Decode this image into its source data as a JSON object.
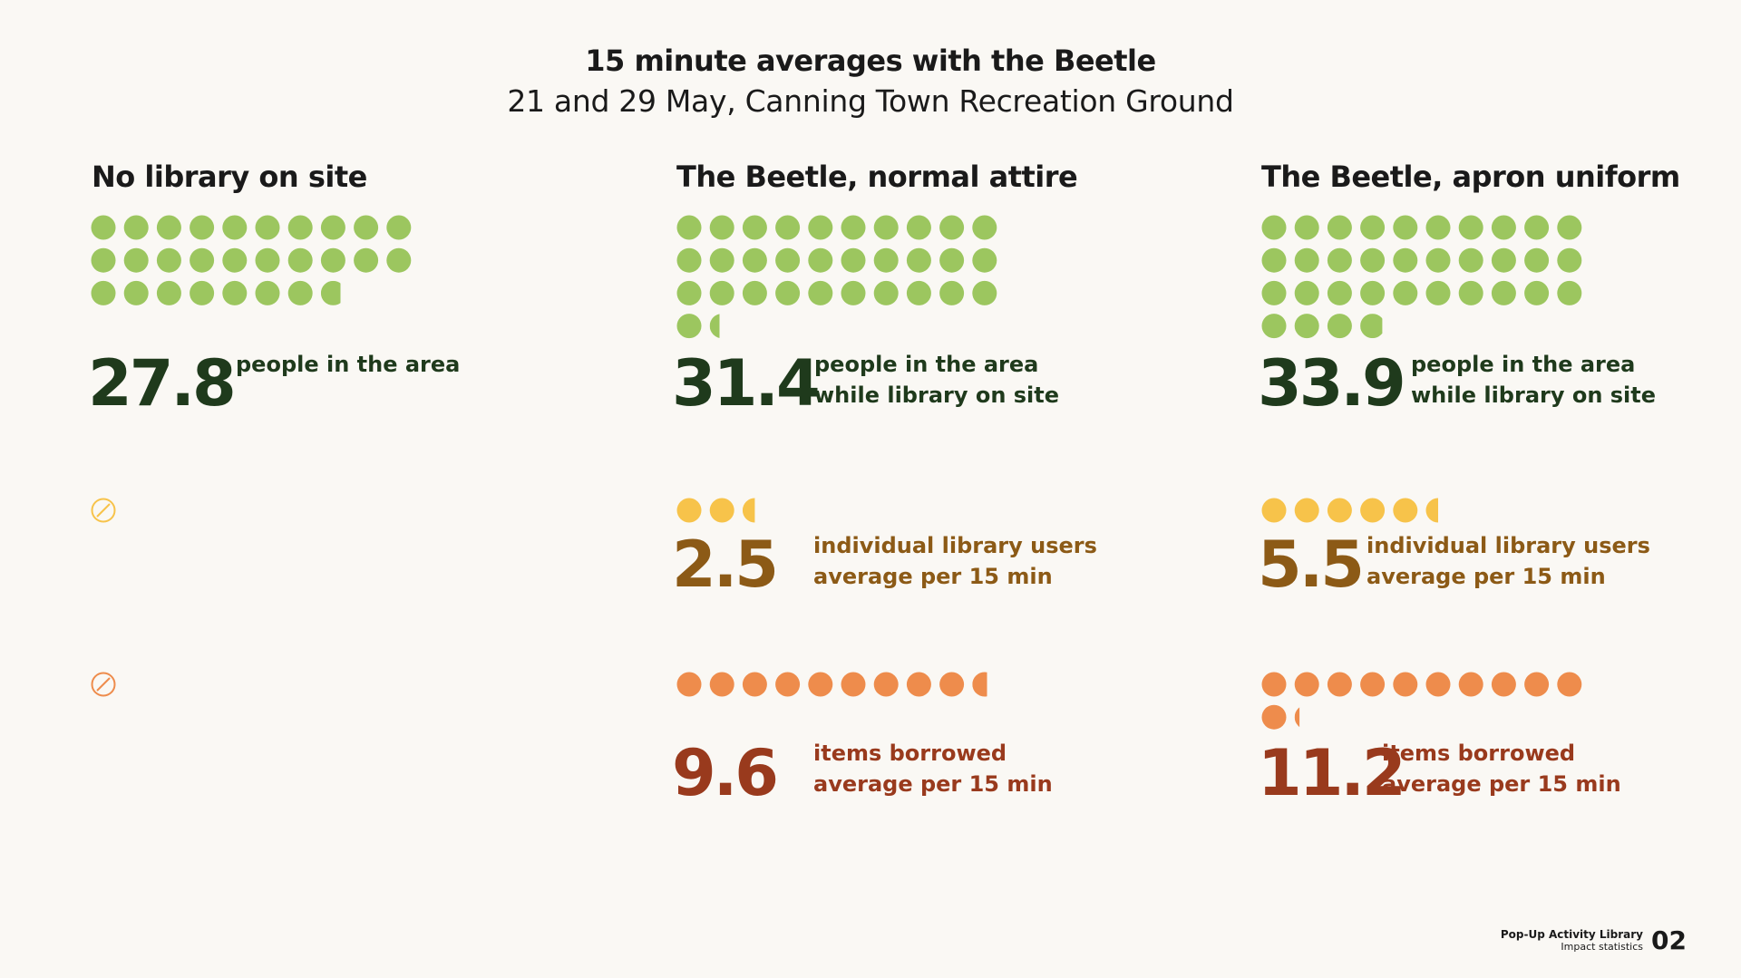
{
  "header": {
    "title": "15 minute averages with the Beetle",
    "subtitle": "21 and 29 May, Canning Town Recreation Ground"
  },
  "columns": [
    {
      "heading": "No library on site"
    },
    {
      "heading": "The Beetle, normal attire"
    },
    {
      "heading": "The Beetle, apron uniform"
    }
  ],
  "colors": {
    "people_dot": "#9cc65f",
    "people_text": "#1f3a1c",
    "users_dot": "#f7c34a",
    "users_text": "#8c5a16",
    "items_dot": "#ee8c4c",
    "items_text": "#993a1d",
    "background": "#faf8f4"
  },
  "chart_data": {
    "type": "pictogram",
    "unit": "1 dot = 1",
    "categories": [
      "No library on site",
      "The Beetle, normal attire",
      "The Beetle, apron uniform"
    ],
    "series": [
      {
        "name": "people in the area",
        "values": [
          27.8,
          31.4,
          33.9
        ],
        "labels": [
          [
            "people in the area",
            ""
          ],
          [
            "people in the area",
            "while library on site"
          ],
          [
            "people in the area",
            "while library on site"
          ]
        ],
        "value_labels": [
          "27.8",
          "31.4",
          "33.9"
        ]
      },
      {
        "name": "individual library users",
        "values": [
          null,
          2.5,
          5.5
        ],
        "labels": [
          [
            "",
            ""
          ],
          [
            "individual library users",
            "average per 15 min"
          ],
          [
            "individual library users",
            "average per 15 min"
          ]
        ],
        "value_labels": [
          "",
          "2.5",
          "5.5"
        ]
      },
      {
        "name": "items borrowed",
        "values": [
          null,
          9.6,
          11.2
        ],
        "labels": [
          [
            "",
            ""
          ],
          [
            "items borrowed",
            "average per 15 min"
          ],
          [
            "items borrowed",
            "average per 15 min"
          ]
        ],
        "value_labels": [
          "",
          "9.6",
          "11.2"
        ]
      }
    ]
  },
  "footer": {
    "app_name": "Pop-Up Activity Library",
    "section": "Impact statistics",
    "page": "02"
  }
}
